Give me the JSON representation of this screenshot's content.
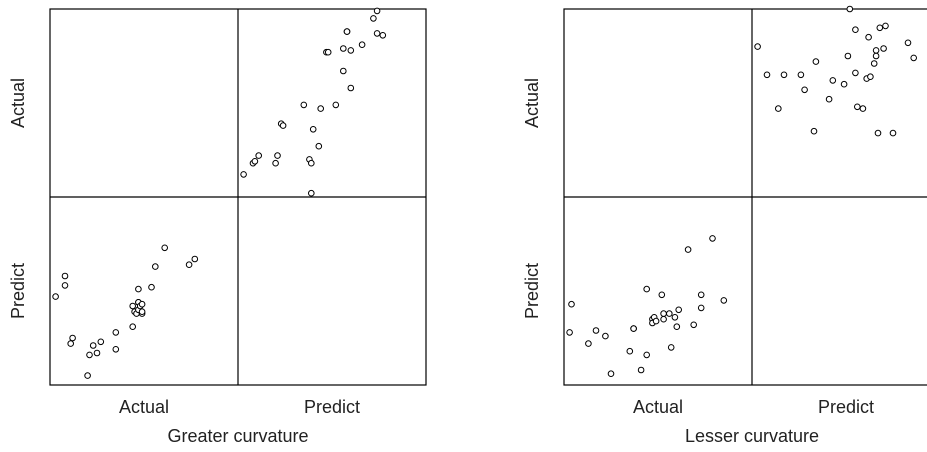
{
  "chart_data": [
    {
      "type": "scatter",
      "title": "Greater curvature",
      "variables": [
        "Actual",
        "Predict"
      ],
      "panels": {
        "actual_vs_predict": {
          "x": [
            0.03,
            0.08,
            0.09,
            0.11,
            0.2,
            0.21,
            0.23,
            0.24,
            0.35,
            0.38,
            0.39,
            0.39,
            0.4,
            0.43,
            0.44,
            0.47,
            0.48,
            0.52,
            0.56,
            0.56,
            0.58,
            0.58,
            0.6,
            0.6,
            0.66,
            0.72,
            0.74,
            0.74,
            0.77
          ],
          "y": [
            0.12,
            0.18,
            0.19,
            0.22,
            0.18,
            0.22,
            0.39,
            0.38,
            0.49,
            0.2,
            0.02,
            0.18,
            0.36,
            0.27,
            0.47,
            0.77,
            0.77,
            0.49,
            0.67,
            0.79,
            0.88,
            0.88,
            0.58,
            0.78,
            0.81,
            0.95,
            0.99,
            0.87,
            0.86
          ]
        },
        "predict_vs_actual": {
          "x": [
            0.03,
            0.08,
            0.08,
            0.11,
            0.12,
            0.2,
            0.21,
            0.23,
            0.25,
            0.27,
            0.35,
            0.35,
            0.44,
            0.44,
            0.45,
            0.46,
            0.47,
            0.47,
            0.47,
            0.47,
            0.48,
            0.49,
            0.49,
            0.49,
            0.54,
            0.56,
            0.61,
            0.74,
            0.77
          ],
          "y": [
            0.47,
            0.58,
            0.53,
            0.22,
            0.25,
            0.05,
            0.16,
            0.21,
            0.17,
            0.23,
            0.28,
            0.19,
            0.31,
            0.42,
            0.39,
            0.38,
            0.44,
            0.51,
            0.44,
            0.4,
            0.42,
            0.43,
            0.38,
            0.39,
            0.52,
            0.63,
            0.73,
            0.64,
            0.67
          ]
        }
      },
      "xlabel": "Greater curvature",
      "tick_labels": [
        "Actual",
        "Predict"
      ]
    },
    {
      "type": "scatter",
      "title": "Lesser curvature",
      "variables": [
        "Actual",
        "Predict"
      ],
      "panels": {
        "actual_vs_predict": {
          "x": [
            0.03,
            0.08,
            0.14,
            0.17,
            0.26,
            0.28,
            0.33,
            0.34,
            0.41,
            0.43,
            0.49,
            0.51,
            0.52,
            0.55,
            0.55,
            0.56,
            0.59,
            0.61,
            0.62,
            0.63,
            0.65,
            0.66,
            0.66,
            0.67,
            0.68,
            0.7,
            0.71,
            0.75,
            0.83,
            0.86
          ],
          "y": [
            0.8,
            0.65,
            0.47,
            0.65,
            0.65,
            0.57,
            0.35,
            0.72,
            0.52,
            0.62,
            0.6,
            0.75,
            1.0,
            0.66,
            0.89,
            0.48,
            0.47,
            0.63,
            0.85,
            0.64,
            0.71,
            0.78,
            0.75,
            0.34,
            0.9,
            0.79,
            0.91,
            0.34,
            0.82,
            0.74
          ]
        },
        "predict_vs_actual": {
          "x": [
            0.03,
            0.04,
            0.13,
            0.17,
            0.22,
            0.25,
            0.35,
            0.37,
            0.37,
            0.41,
            0.44,
            0.44,
            0.47,
            0.47,
            0.48,
            0.49,
            0.52,
            0.53,
            0.53,
            0.56,
            0.57,
            0.59,
            0.6,
            0.61,
            0.66,
            0.69,
            0.73,
            0.73,
            0.79,
            0.85
          ],
          "y": [
            0.28,
            0.43,
            0.22,
            0.29,
            0.26,
            0.06,
            0.18,
            0.3,
            0.3,
            0.08,
            0.16,
            0.51,
            0.35,
            0.33,
            0.36,
            0.34,
            0.48,
            0.35,
            0.38,
            0.38,
            0.2,
            0.36,
            0.31,
            0.4,
            0.72,
            0.32,
            0.48,
            0.41,
            0.78,
            0.45
          ]
        }
      },
      "xlabel": "Lesser curvature",
      "tick_labels": [
        "Actual",
        "Predict"
      ]
    }
  ]
}
